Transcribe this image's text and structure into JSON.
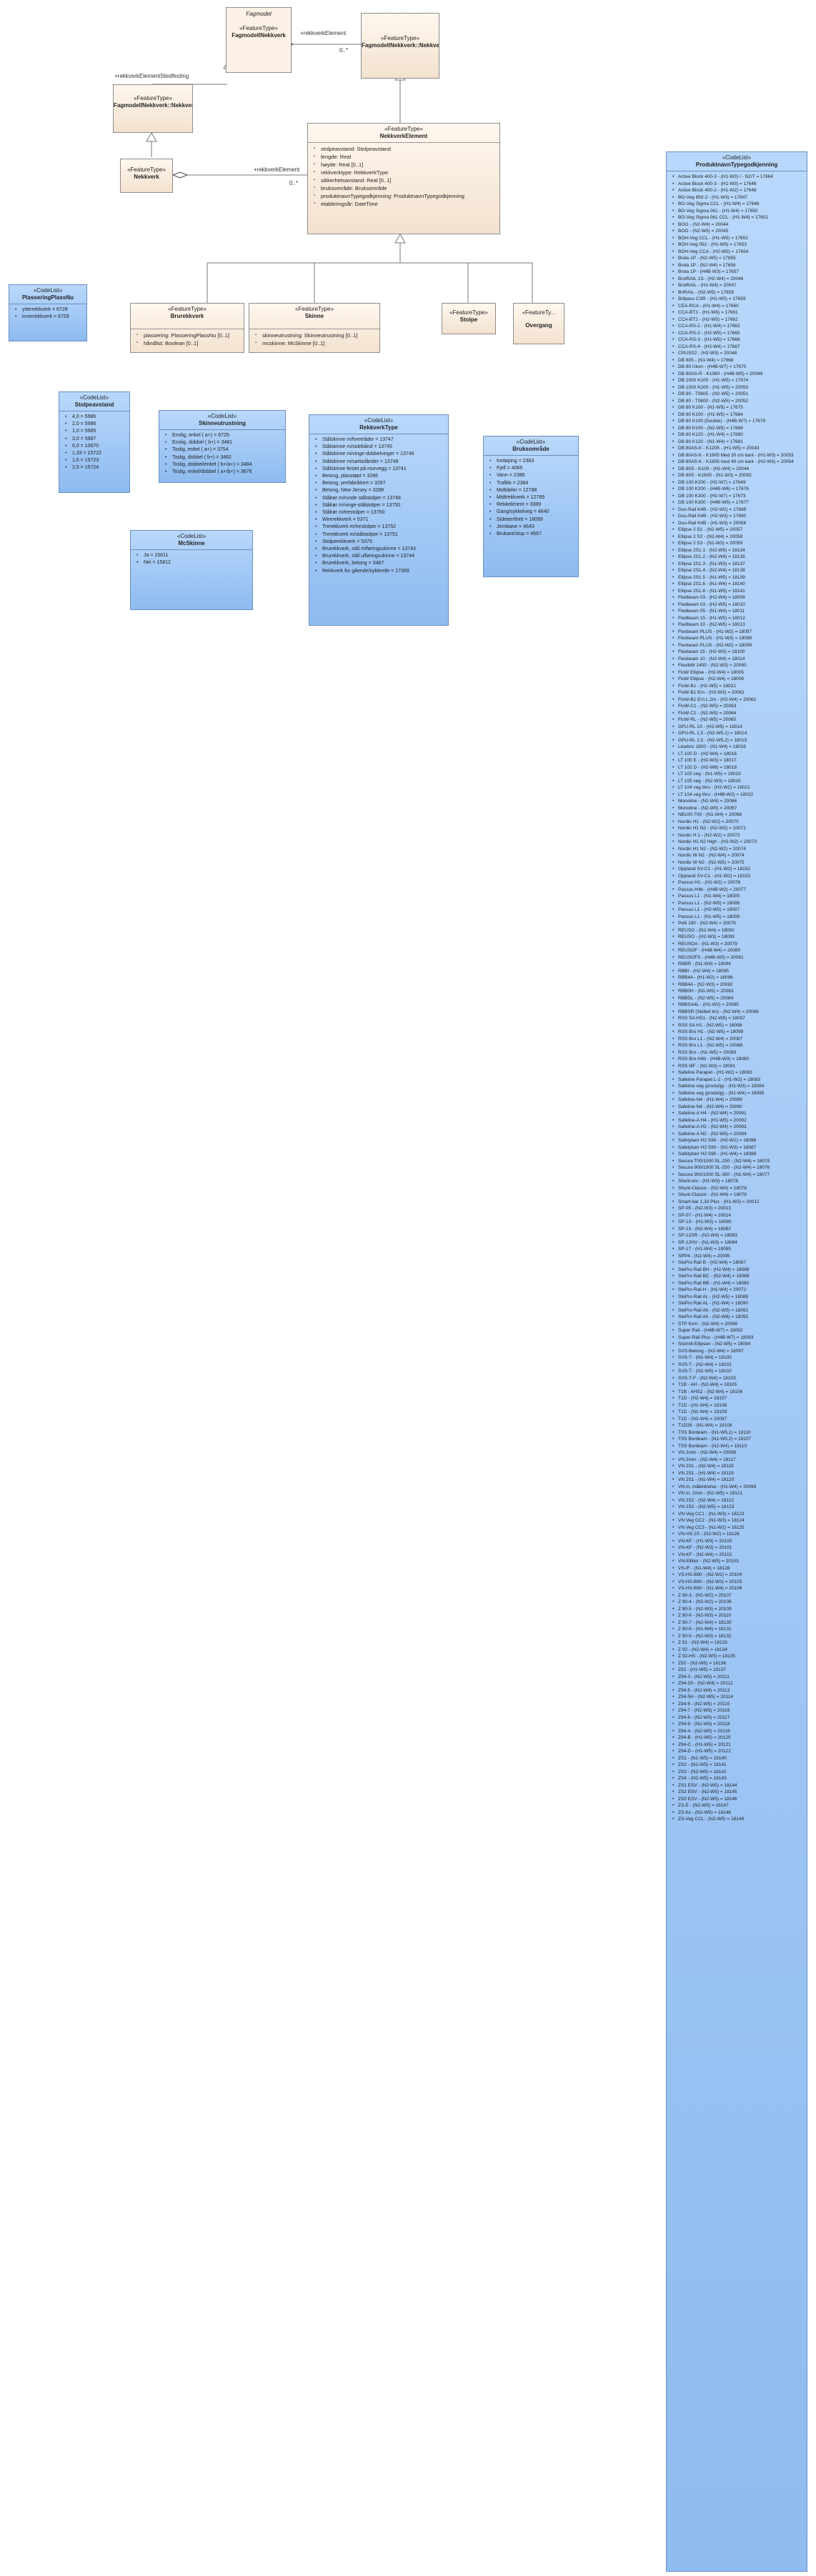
{
  "diagram": {
    "package_fagmodell": {
      "stereotype": "Fagmodel",
      "name": "FagmodellNekkverk",
      "stereotype2": "«FeatureType»"
    },
    "fagmodell_stedfest": {
      "stereotype": "«FeatureType»",
      "name": "FagmodellNekkverk::NekkverkStedfesting"
    },
    "fagmodell_element": {
      "stereotype": "«FeatureType»",
      "name": "FagmodellNekkverk::NekkverkElement"
    },
    "nekkverk": {
      "stereotype": "«FeatureType»",
      "name": "Nekkverk"
    },
    "nekkverk_element": {
      "stereotype": "«FeatureType»",
      "name": "NekkverkElement",
      "attributes": [
        "stolpeavstand: Stolpeavstand",
        "lengde: Real",
        "høyde: Real [0..1]",
        "rekkverktype: RekkverkType",
        "sikkerhetsavstand: Real [0..1]",
        "bruksområde: Bruksområde",
        "produktnavnTypegodkjenning: ProduktnavnTypegodkjenning",
        "etableringsår: DateTime"
      ]
    },
    "rekkverk": {
      "stereotype": "«FeatureType»",
      "name": "Brurekkverk",
      "attributes": [
        "plassering: PlasseringPlassNu [0..1]",
        "håndlist: Boolean [0..1]"
      ]
    },
    "skinne": {
      "stereotype": "«FeatureType»",
      "name": "Skinne",
      "attributes": [
        "skinneutrustning: Skinneutrustning [0..1]",
        "mcskinne: McSkinne [0..1]"
      ]
    },
    "stolpe": {
      "stereotype": "«FeatureType»",
      "name": "Stolpe"
    },
    "overgang": {
      "stereotype": "«FeatureTy...",
      "name": "Overgang"
    },
    "plassering": {
      "stereotype": "«CodeList»",
      "name": "PlasseringPlassNu",
      "values": [
        "ytterrekkverk = 6728",
        "innerrekkverk = 6729"
      ]
    },
    "stolpeavstand": {
      "stereotype": "«CodeList»",
      "name": "Stolpeavstand",
      "values": [
        "4,0 = 5986",
        "2,0 = 5986",
        "1,0 = 5985",
        "3,0 = 5987",
        "6,0 = 10670",
        "1,33 = 15722",
        "1,6 = 15723",
        "2,5 = 15724"
      ]
    },
    "skinneutrustning": {
      "stereotype": "«CodeList»",
      "name": "Skinneutrustning",
      "values": [
        "Enslig, enkel ( a+) = 6725",
        "Enslig, dobbel ( b+) = 3481",
        "Toslig, enkel ( a+) = 3754",
        "Toslig, dobbel ( b+) = 3482",
        "Toslig, dobbel/enkel ( b+/a+) = 3484",
        "Toslig, enkel/dobbel ( a+/b+) = 3676"
      ]
    },
    "mcskinne": {
      "stereotype": "«CodeList»",
      "name": "McSkinne",
      "values": [
        "Ja = 15811",
        "Nei = 15812"
      ]
    },
    "rekkverktype": {
      "stereotype": "«CodeList»",
      "name": "RekkverkType",
      "values": [
        "Stålskinne m/foretråder = 13747",
        "Stålskinne m/sidebånd = 13745",
        "Stålskinne m/vinge-dobbelvinger = 13746",
        "Stålskinne m/sørkelånder = 13749",
        "Stålskinne festet på murvegg = 13741",
        "Betong, plasstøpt = 3286",
        "Betong, prefabrikkert = 3287",
        "Betong, New Jersey = 3288",
        "Stålrør m/runde stålstolper = 13748",
        "Stålrør m/vinge-stålstolper = 13750",
        "Stålrør m/trestolper = 13750",
        "Wirerekkverk = 5371",
        "Trerekkverk m/trestolper = 13752",
        "Trerekkverk m/stålstolper = 13751",
        "Stolperekkverk = 5375",
        "Brurekkverk, stål m/føringsskinne = 13743",
        "Brurekkverk, stål u/føringsskinne = 13744",
        "Brurekkverk, betong = 3467",
        "Rekkverk for gående/syklende = 17389"
      ]
    },
    "bruksomrade": {
      "stereotype": "«CodeList»",
      "name": "Bruksområde",
      "values": [
        "Innløping = 2383",
        "Fjell = 4065",
        "Vann = 2386",
        "Trafikk = 2384",
        "Midtdeler = 12788",
        "Midtrekkverk = 12789",
        "Rekkeliment = 3389",
        "Gang/sykkelveg = 4640",
        "Sideterrfinitt = 18099",
        "Jernbane = 4643",
        "Brukant/stup = 4667"
      ]
    },
    "produktnavn": {
      "stereotype": "«CodeList»",
      "name": "ProduktnavnTypegodkjenning",
      "values": [
        "Active Block 400-3 - (H1-W3) / - N2/T = 17664",
        "Active Block 400-3 - (H1-W3) = 17646",
        "Active Block 400-2 - (H1-W2) = 17648",
        "BO-Veg 850-2 - (H1-W3) = 17647",
        "BO-Veg Sigma CCL - (H1-W4) = 17648",
        "BO-Veg Sigma 061 - (H1-W4) = 17650",
        "BO-Veg Sigma 061 CCL - (H1-W4) = 17651",
        "BOO - (N2-W4) = 20044",
        "BOO - (N2-W5) = 20045",
        "BOH-Veg CCL - (H1-W5) = 17652",
        "BOH-Veg 052 - (H1-W5) = 17653",
        "BOH-Veg CCA - (H2-W5) = 17654",
        "Brola 1P - (N2-W5) = 17655",
        "Brola 1P - (N2-W4) = 17656",
        "Brola 1P - (H4B-W3) = 17657",
        "BrolRAIL 1S - (H2-W4) = 20046",
        "BrolRAIL - (H1-W4) = 20047",
        "BriRAIL - (N2-W5) = 17658",
        "Brilpass CSR - (H1-W5) = 17659",
        "CEA-RCA - (H1-W4) = 17660",
        "CCA-BT1 - (H1-W6) = 17661",
        "CCA-BT2 - (H2-W5) = 17662",
        "CCA-RS-1 - (H1-W4) = 17663",
        "CCA-RS-2 - (H2-W5) = 17665",
        "CCA-RS-3 - (H1-W5) = 17666",
        "CCA-RS-4 - (H2-W4) = 17667",
        "CRUSS2 - (H2-W3) = 20048",
        "DB 805 - (N1-W4) = 17668",
        "DB 80 Ukon - (H4B-W7) = 17670",
        "DB 80AS-R - K1060 - (H4B-W5) = 20049",
        "DB 1000 K100 - (H1-W5) = 17674",
        "DB 1000 K200 - (H1-W5) = 20050",
        "DB 80 - T0805 - (N2-W5) = 20051",
        "DB 80 - T0800 - (N2-W5) = 20052",
        "DB 80 K100 - (N1-W5) = 17675",
        "DB 80 K100 - (H1-W5) = 17684",
        "DB 80 K100 (Double) - (H4B-W7) = 17679",
        "DB 80 K100 - (N2-W5) = 17686",
        "DB 80 K120 - (H1-W4) = 17680",
        "DB 80 K120 - (N1-W4) = 17681",
        "DB 80AS-K - K1205 - (H1-W5) = 20043",
        "DB 80AS-K - K1805 Med 30 cm kant - (H1-W3) = 20053",
        "DB 80AS-K - K1805 med 40 cm kant - (H2-W3) = 20054",
        "DB 80S - K100 - (N1-W4) = 20044",
        "DB 80S - K1605 - (N1-W3) = 20055",
        "DB 100 K200 - (H2-W7) = 17649",
        "DB 100 K200 - (H4B-W6) = 17676",
        "DB 100 K300 - (H2-W7) = 17673",
        "DB 100 K300 - (H4B-W5) = 17677",
        "Duo-Rail K4B - (H2-W2) = 17689",
        "Duo-Rail K4B - (H2-W3) = 17690",
        "Duo-Rail K4B - (H1-W3) = 20056",
        "Ellipse 2 S1 - (N2-W5) = 20057",
        "Ellipse 2 S2 - (N2-W4) = 20058",
        "Ellipse 2 S3 - (N1-W3) = 20059",
        "Ellipse 2S1.1 - (N2-W5) = 18134",
        "Ellipse 2S1.2 - (N2-W4) = 18135",
        "Ellipse 2S1.3 - (N1-W3) = 18137",
        "Ellipse 2S1.4 - (N2-W4) = 18138",
        "Ellipse 2S1.5 - (N1-W5) = 18139",
        "Ellipse 2S1.6 - (N1-W4) = 18140",
        "Ellipse 2S1.8 - (N1-W5) = 18141",
        "Fledbeam 03 - (H2-W4) = 18009",
        "Fledbeam 03 - (H2-W5) = 18010",
        "Fledbeam 05 - (N1-W4) = 18011",
        "Fledbeam 15 - (H1-W5) = 18012",
        "Fledbeam 10 - (N2-W5) = 18013",
        "Flexbeam PLUS - (H1-W2) = 18097",
        "Flexbeam PLUS - (H1-W3) = 18098",
        "Flexbeam PLUS - (N2-W2) = 18099",
        "Flexbeam 15 - (H2-W3) = 18100",
        "Flexbeam 10 - (N2-W4) = 18014",
        "Flexibilit 1400 - (N2-W3) = 20060",
        "FloW Ellipse - (H2-W4) = 18005",
        "FloW Ellipse - (N2-W4) = 18006",
        "FloW-B1 - (H2-W5) = 18021",
        "FloW-B1 Ern - (H2-W3) = 20061",
        "FloW-B1 Ern L,2m - (H2-W4) = 20062",
        "FloW-C1 - (N2-W5) = 20063",
        "FloW-C1 - (N1-W5) = 20064",
        "FloW-RL - (N2-W5) = 20065",
        "GPU-RL 1S - (H2-W5) = 18014",
        "GPU-RL 1,5 - (N2-W5,1) = 18014",
        "GPU-RL 2,5 - (N2-W5,2) = 18015",
        "Linebric 1800 - (N1-W4) = 18016",
        "LT 100 D - (H2-W4) = 18016",
        "LT 100 E - (H2-W3) = 18017",
        "LT 102 D - (H2-W6) = 18018",
        "LT 102 veg - (N1-W5) = 18019",
        "LT 105 veg - (N2-W3) = 18020",
        "LT 104 veg thru - (H2-W2) = 18021",
        "LT 104 veg thru - (H4B-W2) = 18022",
        "Monoline - (N1-W4) = 20066",
        "Monoline - (N2-W5) = 20067",
        "NB100-T00 - (N1-W4) = 20068",
        "Nordic H1 - (N2-W2) = 20070",
        "Nordic H1 N2 - (N2-W2) = 20071",
        "Nordic H 1 - (N2-W2) = 20072",
        "Nordic H1 N2 High - (H2-W2) = 20073",
        "Nordic H1 N2 - (N2-W2) = 20074",
        "Nordic W N2 - (N2-W4) = 20074",
        "Nordic W N2 - (N2-W5) = 20075",
        "Oppland SV-C1 - (H1-W2) = 18152",
        "Oppland SV-C1 - (H1-W2) = 18153",
        "Passus H1 - (H1-W2) = 20076",
        "Passus H4b - (H4B-W2) = 20077",
        "Passus L1 - (N1-W4) = 18005",
        "Passus L1 - (N2-W5) = 18006",
        "Passus L1 - (H2-W5) = 18007",
        "Passus L1 - (N1-W5) = 18008",
        "Pelli 180 - (N2-W4) = 20078",
        "REUSO - (N2-W4) = 18092",
        "REUSO - (H2-W3) = 18093",
        "REUSOA - (N1-W3) = 20079",
        "REUSOF - (H4B-W4) = 20080",
        "REUSOFS - (H4B-W3) = 20081",
        "RBBR - (N1-W4) = 18094",
        "RBBI - (H2-W4) = 18095",
        "RBB4A - (H1-W2) = 18096",
        "RBB4A - (N2-W3) = 20082",
        "RBB0H - (N1-W5) = 20083",
        "RBBDL - (N2-W5) = 20084",
        "RBBSA4L - (H1-W2) = 20085",
        "RBBSR (Skilled trn) - (N2-W4) = 20086",
        "RSS SA HS1 - (N2-W5) = 18097",
        "RSS SA H1 - (N2-W5) = 18098",
        "RSS Bro H1 - (N2-W5) = 18099",
        "RSS Bro L1 - (N2-W4) = 20087",
        "RSS Bro L1 - (N2-W5) = 20088",
        "RSS Bro - (N1-W5) = 20089",
        "RSS Bro H4b - (H4B-W3) = 18080",
        "RSS MF - (N1-W3) = 18081",
        "Safeline Parapet - (H1-W2) = 18082",
        "Safeline Parapet L-2 - (H1-W2) = 18083",
        "Safeline veg (prodslig) - (H1-W3) = 18084",
        "Safeline veg (prodslig) - (N1-W4) = 18085",
        "Safeline-N4 - (H1-W4) = 20089",
        "Safeline-N4 - (N2-W4) = 20090",
        "Safeline-A H4 - (N2-W4) = 20091",
        "Safeline-A H4 - (H1-W5) = 20092",
        "Safeline-A H2 - (N2-W4) = 20093",
        "Safeline-A N2 - (N2-W5) = 20094",
        "Safetybarr H2 S90 - (H2-W1) = 18086",
        "Safetybarr H2 S90 - (N1-W3) = 18087",
        "Safetybarr H2 S90 - (H1-W4) = 18088",
        "Secura T00/1000 SL-250 - (N2-W4) = 18079",
        "Secura 900/1000 SL-250 - (N2-W4) = 18076",
        "Secura 900/1000 SL-350 - (N1-W4) = 18077",
        "Shunt-erx - (H1-W3) = 18078",
        "Shunt-Classic - (N2-W4) = 18078",
        "Shunt-Classic - (N1-W4) = 18079",
        "Smart-bar 1,33 Plus - (H1-W3) = 20012",
        "SP-05 - (N2-W3) = 20013",
        "SP-07 - (H1-W4) = 20014",
        "SP-1S - (H1-W3) = 18080",
        "SP-13 - (N2-W4) = 18082",
        "SP-12SR - (N2-W4) = 18083",
        "SP-12HV - (N1-W3) = 18084",
        "SP-17 - (H1-W4) = 18085",
        "SPP4 - (N2-W4) = 20095",
        "StePro Rail B - (H2-W4) = 18087",
        "StePro Rail BH - (H2-W4) = 18088",
        "StePro Rail BC - (N2-W4) = 18089",
        "StePro Rail BB - (H1-W4) = 18090",
        "StePro Rail H - (H1-W4) = 20072",
        "StePro Rail AL - (H2-W5) = 18089",
        "StePro Rail AL - (N1-W4) = 18090",
        "StePro Rail Ah - (N2-W5) = 18091",
        "StePro Rail Ah - (N2-W6) = 18092",
        "STP Kvm - (N2-W4) = 20096",
        "Super Rail - (H4B-W7) = 18092",
        "Super-Rail Plus - (H4B-W7) = 18093",
        "Sistmill-Ellipsen - (N2-W5) = 18094",
        "SVS-Betong - (N1-W4) = 18097",
        "SVS-T - (N1-W4) = 18100",
        "SVS-T - (N2-W4) = 18101",
        "SVS-T - (N2-W5) = 18102",
        "SVS-T-F - (N2-W4) = 18103",
        "T1B - AH - (N2-W4) = 18105",
        "T1B - AHS2 - (N2-W4) = 18106",
        "T1D - (H2-W4) = 18107",
        "T1D - (H1-W4) = 18108",
        "T1D - (N1-W4) = 18109",
        "T1D - (N2-W4) = 20097",
        "T1D28 - (N1-W4) = 18108",
        "TSS Bordeam - (N1-W5,1) = 18110",
        "TSS Bordeam - (N1-W5,2) = 18107",
        "TSS Bordeam - (N2-W4) = 18110",
        "VN 2mm - (N2-W4) = 20098",
        "VN 2mm - (N2-W4) = 18117",
        "VN 2S1 - (N2-W4) = 18118",
        "VN 2S1 - (H1-W4) = 18119",
        "VN 2S1 - (N1-W4) = 18120",
        "VN m. målkrdrelse - (H1-W4) = 20099",
        "VN m. 2mm - (N1-W5) = 18121",
        "VN 2S2 - (N2-W4) = 18122",
        "VN 2S2 - (N2-W5) = 18123",
        "VN Veg CC1 - (N1-W3) = 18123",
        "VN Veg CC2 - (N1-W3) = 18124",
        "VN Veg CC3 - (N1-W2) = 18125",
        "VN-HS 2S - (N2-W2) = 18126",
        "VN-KF - (H1-W3) = 20100",
        "VN-KF - (N2-W3) = 20101",
        "VN-KF - (N2-W4) = 20102",
        "VN-Ellitier - (N2-W5) = 20103",
        "VS-IF - (N1-W4) = 18128",
        "VS-HS-B90 - (N2-W2) = 20104",
        "VS-HS-B90 - (N2-W3) = 20105",
        "VS-HS-B90 - (N1-W4) = 20106",
        "Z 90-3 - (N2-W2) = 20107",
        "Z 90-4 - (N2-W2) = 20108",
        "Z 90-5 - (N2-W3) = 20109",
        "Z 90-6 - (N2-W3) = 20110",
        "Z 90-7 - (N2-W4) = 18130",
        "Z 90-8 - (N1-W4) = 18131",
        "Z 90-9 - (N2-W3) = 18132",
        "Z 91 - (N2-W4) = 18133",
        "Z 92 - (N2-W4) = 18134",
        "Z 92-HS - (N2-W5) = 18135",
        "Z92 - (N2-W5) = 18136",
        "Z92 - (H1-W5) = 18137",
        "Z94-3 - (N2-W5) = 20111",
        "Z94-3S - (N2-W4) = 20112",
        "Z94-5 - (N2-W4) = 20113",
        "Z94-5H - (N2-W5) = 20114",
        "Z94-6 - (N2-W5) = 20115",
        "Z94-7 - (N2-W5) = 20116",
        "Z94-8 - (N2-W5) = 20117",
        "Z94-9 - (N2-W5) = 20118",
        "Z94-A - (N2-W5) = 20119",
        "Z94-B - (H1-W5) = 20120",
        "Z94-C - (H1-W5) = 20121",
        "Z94-D - (H1-W5) = 20122",
        "ZS1 - (N1-W5) = 18140",
        "ZS2 - (N2-W5) = 18141",
        "ZS3 - (N2-W5) = 18142",
        "ZS4 - (N2-W5) = 18143",
        "ZS1 ESV - (N2-W5) = 18144",
        "ZS2 ESV - (N2-W5) = 18145",
        "ZS3 ESV - (N2-W5) = 18146",
        "ZS-E - (N2-W5) = 18147",
        "ZS-Kv - (N2-W5) = 18148",
        "ZS-Veg CCL - (N2-W5) = 18149"
      ]
    },
    "links": {
      "rekkverkelement_label": "+rekkverkElement",
      "rekkverkelement_label2": "+rekkverkElement",
      "rekkverkstedfesting_label": "+rekkverkElementStedfesting",
      "mult1": "0..*",
      "mult2": "0..*"
    },
    "colors": {
      "featuretype_top": "#fff7ee",
      "featuretype_bottom": "#f3e2cf",
      "codelist_top": "#b9d8fb",
      "codelist_bottom": "#8ebbf0",
      "border": "#8c8c8c",
      "line": "#777777"
    }
  }
}
